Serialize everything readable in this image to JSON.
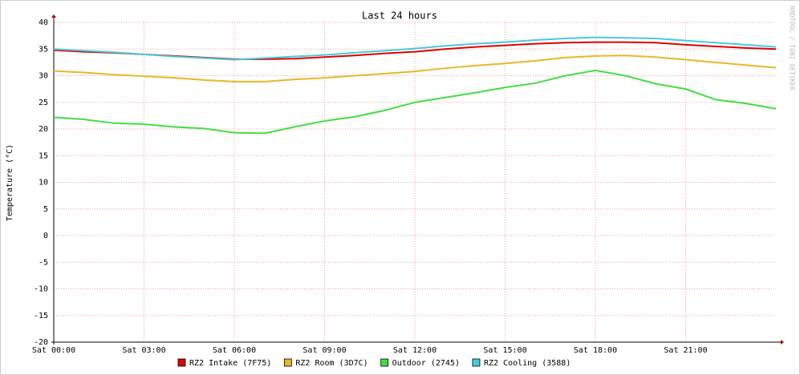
{
  "chart_data": {
    "type": "line",
    "title": "Last 24 hours",
    "y_label": "Temperature (°C)",
    "watermark": "RRDTOOL / TOBI OETIKER",
    "x": [
      0,
      1,
      2,
      3,
      4,
      5,
      6,
      7,
      8,
      9,
      10,
      11,
      12,
      13,
      14,
      15,
      16,
      17,
      18,
      19,
      20,
      21,
      22,
      23,
      24
    ],
    "xlim": [
      0,
      24
    ],
    "xticks": [
      {
        "value": 0,
        "label": "Sat 00:00"
      },
      {
        "value": 3,
        "label": "Sat 03:00"
      },
      {
        "value": 6,
        "label": "Sat 06:00"
      },
      {
        "value": 9,
        "label": "Sat 09:00"
      },
      {
        "value": 12,
        "label": "Sat 12:00"
      },
      {
        "value": 15,
        "label": "Sat 15:00"
      },
      {
        "value": 18,
        "label": "Sat 18:00"
      },
      {
        "value": 21,
        "label": "Sat 21:00"
      }
    ],
    "ylim": [
      -20,
      40
    ],
    "yticks": [
      -20,
      -15,
      -10,
      -5,
      0,
      5,
      10,
      15,
      20,
      25,
      30,
      35,
      40
    ],
    "grid": true,
    "series": [
      {
        "name": "RZ2 Intake (7F75)",
        "color": "#e00000",
        "values": [
          34.8,
          34.5,
          34.3,
          34.0,
          33.7,
          33.4,
          33.1,
          33.1,
          33.2,
          33.5,
          33.8,
          34.2,
          34.5,
          35.0,
          35.4,
          35.7,
          36.0,
          36.2,
          36.3,
          36.3,
          36.2,
          35.8,
          35.5,
          35.2,
          35.0
        ]
      },
      {
        "name": "RZ2 Room (3D7C)",
        "color": "#e8b828",
        "values": [
          30.9,
          30.6,
          30.2,
          29.9,
          29.6,
          29.2,
          28.9,
          28.9,
          29.3,
          29.6,
          30.0,
          30.4,
          30.8,
          31.4,
          31.9,
          32.3,
          32.8,
          33.4,
          33.7,
          33.8,
          33.5,
          33.0,
          32.5,
          32.0,
          31.5
        ]
      },
      {
        "name": "Outdoor (2745)",
        "color": "#44dd44",
        "values": [
          22.2,
          21.8,
          21.1,
          20.9,
          20.4,
          20.1,
          19.3,
          19.2,
          20.4,
          21.5,
          22.3,
          23.5,
          25.0,
          25.9,
          26.8,
          27.8,
          28.6,
          30.0,
          31.0,
          30.0,
          28.5,
          27.5,
          25.5,
          24.8,
          23.8
        ]
      },
      {
        "name": "RZ2 Cooling (3588)",
        "color": "#44ccdd",
        "values": [
          35.0,
          34.7,
          34.4,
          34.0,
          33.6,
          33.3,
          33.0,
          33.3,
          33.6,
          33.9,
          34.3,
          34.7,
          35.1,
          35.6,
          36.0,
          36.3,
          36.7,
          37.0,
          37.2,
          37.1,
          37.0,
          36.6,
          36.2,
          35.8,
          35.4
        ]
      }
    ]
  }
}
